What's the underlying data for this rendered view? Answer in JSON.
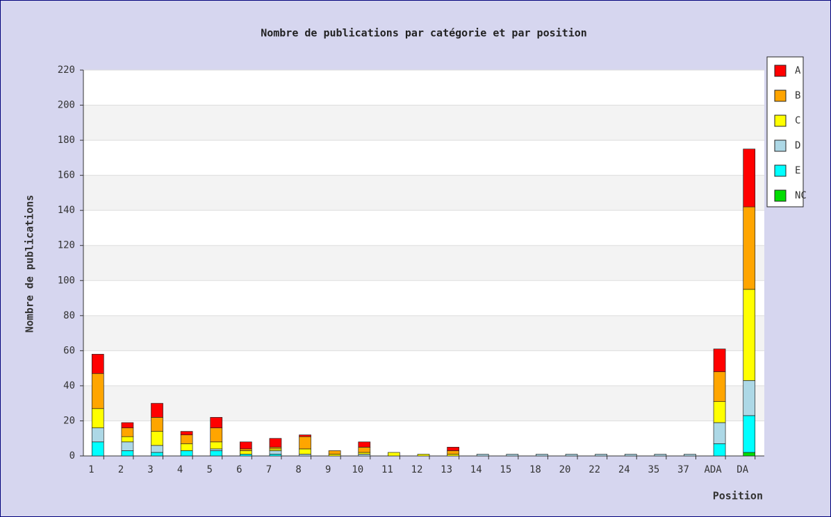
{
  "chart_data": {
    "type": "stacked_bar",
    "title": "Nombre de publications par catégorie et par position",
    "y_label": "Nombre de publications",
    "x_label": "Position",
    "categories": [
      "1",
      "2",
      "3",
      "4",
      "5",
      "6",
      "7",
      "8",
      "9",
      "10",
      "11",
      "12",
      "13",
      "14",
      "15",
      "18",
      "20",
      "22",
      "24",
      "35",
      "37",
      "ADA",
      "DA"
    ],
    "series": [
      {
        "name": "A",
        "color": "#ff0000",
        "values": [
          11,
          3,
          8,
          2,
          6,
          4,
          5,
          1,
          0,
          3,
          0,
          0,
          2,
          0,
          0,
          0,
          0,
          0,
          0,
          0,
          0,
          13,
          33
        ]
      },
      {
        "name": "B",
        "color": "#ffa500",
        "values": [
          20,
          5,
          8,
          5,
          8,
          1,
          1,
          7,
          2,
          3,
          0,
          0,
          2,
          0,
          0,
          0,
          0,
          0,
          0,
          0,
          0,
          17,
          47
        ]
      },
      {
        "name": "C",
        "color": "#ffff00",
        "values": [
          11,
          3,
          8,
          4,
          4,
          2,
          1,
          3,
          1,
          1,
          2,
          1,
          1,
          0,
          0,
          0,
          0,
          0,
          0,
          0,
          0,
          12,
          52
        ]
      },
      {
        "name": "D",
        "color": "#add8e6",
        "values": [
          8,
          5,
          4,
          0,
          1,
          0,
          2,
          1,
          0,
          1,
          0,
          0,
          0,
          1,
          1,
          1,
          1,
          1,
          1,
          1,
          1,
          12,
          20
        ]
      },
      {
        "name": "E",
        "color": "#00ffff",
        "values": [
          8,
          3,
          2,
          3,
          3,
          1,
          1,
          0,
          0,
          0,
          0,
          0,
          0,
          0,
          0,
          0,
          0,
          0,
          0,
          0,
          0,
          7,
          21
        ]
      },
      {
        "name": "NC",
        "color": "#00dd00",
        "values": [
          0,
          0,
          0,
          0,
          0,
          0,
          0,
          0,
          0,
          0,
          0,
          0,
          0,
          0,
          0,
          0,
          0,
          0,
          0,
          0,
          0,
          0,
          2
        ]
      }
    ],
    "ylim": [
      0,
      220
    ],
    "yticks": [
      0,
      20,
      40,
      60,
      80,
      100,
      120,
      140,
      160,
      180,
      200,
      220
    ],
    "grid": true,
    "legend": "right"
  }
}
